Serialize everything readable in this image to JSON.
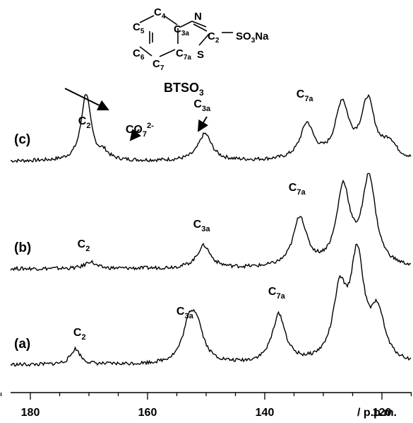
{
  "chart_data": {
    "type": "line",
    "title": "",
    "xlabel": "/ p.p.m.",
    "ylabel": "",
    "xlim": [
      200,
      106
    ],
    "x_reversed": true,
    "grid": false,
    "x_ticks": [
      180,
      160,
      140,
      120
    ],
    "x_tick_labels": [
      "180",
      "160",
      "140",
      "120"
    ],
    "molecule": {
      "name_main": "BTSO",
      "name_sub": "3",
      "atoms": [
        "C4",
        "C3a",
        "N",
        "C2",
        "C5",
        "C6",
        "C7",
        "C7a",
        "S",
        "SO3Na"
      ]
    },
    "series": [
      {
        "name": "(c)",
        "peaks": [
          {
            "x": 170.5,
            "height": 95,
            "label_main": "CO",
            "label_sub": "7",
            "label_sup": "2-"
          },
          {
            "x": 167.5,
            "height": 10,
            "label_main": "C",
            "label_sub": "2"
          },
          {
            "x": 150.2,
            "height": 38,
            "label_main": "C",
            "label_sub": "3a"
          },
          {
            "x": 132.8,
            "height": 50,
            "label_main": "C",
            "label_sub": "7a"
          },
          {
            "x": 126.8,
            "height": 78
          },
          {
            "x": 122.4,
            "height": 82
          },
          {
            "x": 118.7,
            "height": 22
          }
        ]
      },
      {
        "name": "(b)",
        "peaks": [
          {
            "x": 169.8,
            "height": 10,
            "label_main": "C",
            "label_sub": "2"
          },
          {
            "x": 150.4,
            "height": 32,
            "label_main": "C",
            "label_sub": "3a"
          },
          {
            "x": 134.0,
            "height": 70,
            "label_main": "C",
            "label_sub": "7a"
          },
          {
            "x": 126.6,
            "height": 110
          },
          {
            "x": 122.2,
            "height": 125
          }
        ]
      },
      {
        "name": "(a)",
        "peaks": [
          {
            "x": 172.3,
            "height": 22,
            "label_main": "C",
            "label_sub": "2"
          },
          {
            "x": 152.9,
            "height": 48,
            "label_main": "C",
            "label_sub": "3a"
          },
          {
            "x": 151.6,
            "height": 46
          },
          {
            "x": 137.6,
            "height": 68,
            "label_main": "C",
            "label_sub": "7a"
          },
          {
            "x": 127.2,
            "height": 94
          },
          {
            "x": 124.2,
            "height": 145
          },
          {
            "x": 120.7,
            "height": 66
          }
        ]
      }
    ]
  }
}
